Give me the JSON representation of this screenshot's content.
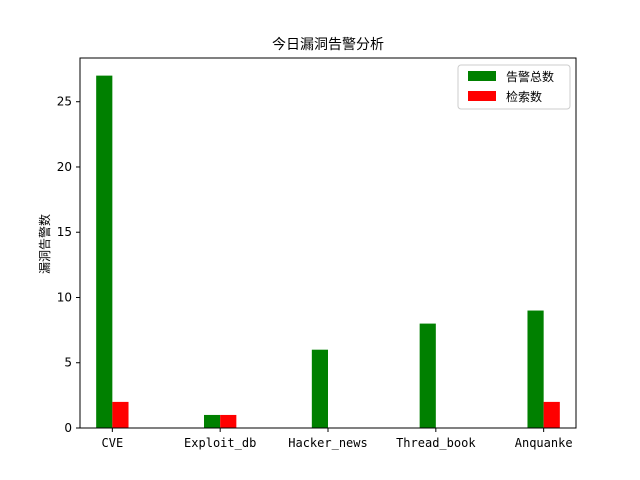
{
  "chart_data": {
    "type": "bar",
    "title": "今日漏洞告警分析",
    "xlabel": "",
    "ylabel": "漏洞告警数",
    "categories": [
      "CVE",
      "Exploit_db",
      "Hacker_news",
      "Thread_book",
      "Anquanke"
    ],
    "series": [
      {
        "name": "告警总数",
        "values": [
          27,
          1,
          6,
          8,
          9
        ],
        "color": "#008000"
      },
      {
        "name": "检索数",
        "values": [
          2,
          1,
          0,
          0,
          2
        ],
        "color": "#ff0000"
      }
    ],
    "ylim": [
      0,
      28.35
    ],
    "yticks": [
      0,
      5,
      10,
      15,
      20,
      25
    ],
    "legend": "top-right",
    "grid": false
  }
}
